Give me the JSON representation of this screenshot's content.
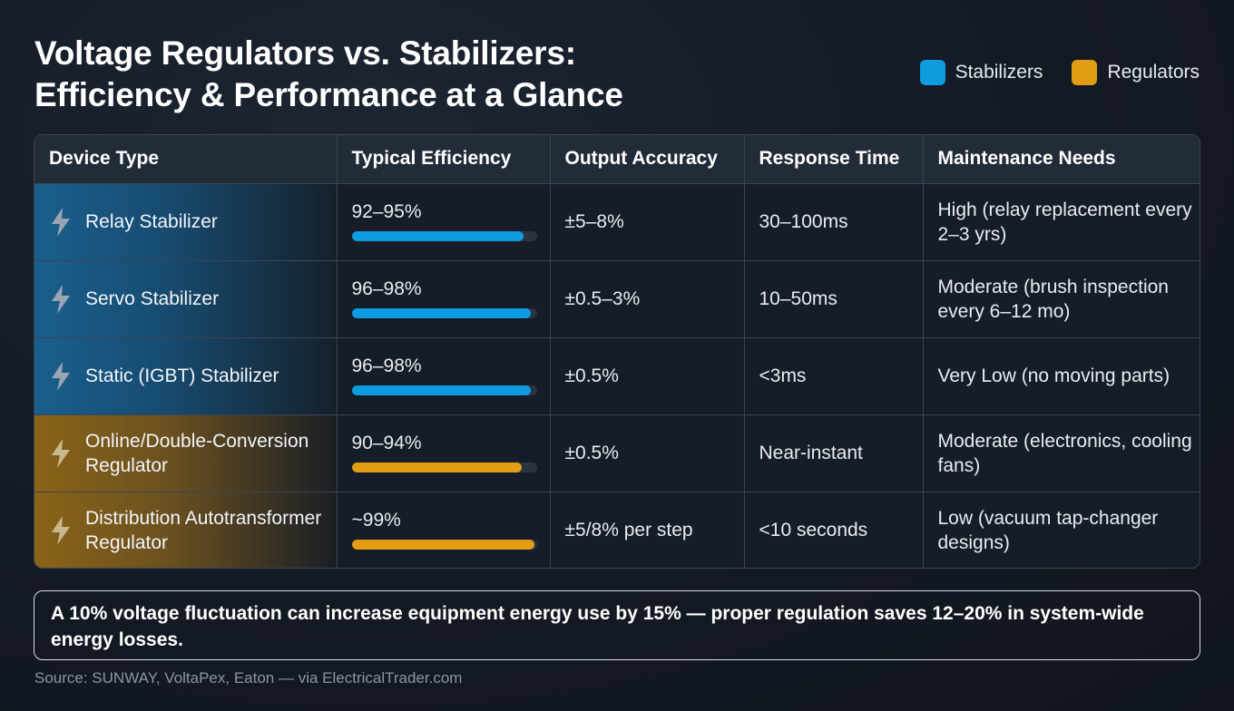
{
  "title_line1": "Voltage Regulators vs. Stabilizers:",
  "title_line2": "Efficiency & Performance at a Glance",
  "legend": [
    {
      "label": "Stabilizers",
      "color": "#0f9be0"
    },
    {
      "label": "Regulators",
      "color": "#e39d15"
    }
  ],
  "columns": [
    "Device Type",
    "Typical Efficiency",
    "Output Accuracy",
    "Response Time",
    "Maintenance Needs"
  ],
  "rows": [
    {
      "device": "Relay Stabilizer",
      "efficiency": "92–95%",
      "efficiency_fill": 0.93,
      "accuracy": "±5–8%",
      "response": "30–100ms",
      "maintenance": "High (relay replacement every 2–3 yrs)",
      "category": "Stabilizers"
    },
    {
      "device": "Servo Stabilizer",
      "efficiency": "96–98%",
      "efficiency_fill": 0.97,
      "accuracy": "±0.5–3%",
      "response": "10–50ms",
      "maintenance": "Moderate (brush inspection every 6–12 mo)",
      "category": "Stabilizers"
    },
    {
      "device": "Static (IGBT) Stabilizer",
      "efficiency": "96–98%",
      "efficiency_fill": 0.97,
      "accuracy": "±0.5%",
      "response": "<3ms",
      "maintenance": "Very Low (no moving parts)",
      "category": "Stabilizers"
    },
    {
      "device": "Online/Double-Conversion Regulator",
      "efficiency": "90–94%",
      "efficiency_fill": 0.92,
      "accuracy": "±0.5%",
      "response": "Near-instant",
      "maintenance": "Moderate (electronics, cooling fans)",
      "category": "Regulators"
    },
    {
      "device": "Distribution Autotransformer Regulator",
      "efficiency": "~99%",
      "efficiency_fill": 0.99,
      "accuracy": "±5/8% per step",
      "response": "<10 seconds",
      "maintenance": "Low (vacuum tap-changer designs)",
      "category": "Regulators"
    }
  ],
  "row_icon": "lightning-bolt-icon",
  "note": "A 10% voltage fluctuation can increase equipment energy use by 15% — proper regulation saves 12–20% in system-wide energy losses.",
  "source": "Source: SUNWAY, VoltaPex, Eaton — via ElectricalTrader.com"
}
